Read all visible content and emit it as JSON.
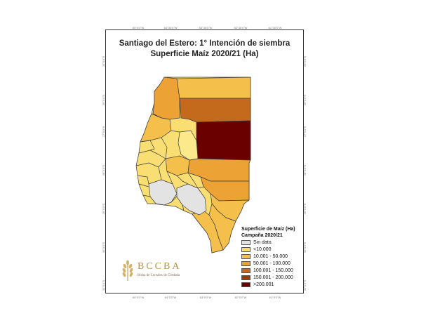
{
  "title_line1": "Santiago del Estero: 1° Intención de siembra",
  "title_line2": "Superficie Maíz 2020/21 (Ha)",
  "ticks": {
    "top": [
      "65°0'0\"W",
      "64°30'0\"W",
      "63°30'0\"W",
      "62°30'0\"W",
      "61°30'0\"W"
    ],
    "bottom": [
      "65°0'0\"W",
      "64°0'0\"W",
      "63°0'0\"W",
      "62°0'0\"W",
      "61°0'0\"W"
    ],
    "left": [
      "25°0'0\"S",
      "26°0'0\"S",
      "27°0'0\"S",
      "28°0'0\"S",
      "29°0'0\"S",
      "30°0'0\"S",
      "31°0'0\"S"
    ],
    "right": [
      "25°0'0\"S",
      "26°0'0\"S",
      "27°0'0\"S",
      "28°0'0\"S",
      "29°0'0\"S",
      "30°0'0\"S",
      "31°0'0\"S"
    ]
  },
  "legend": {
    "title1": "Superficie de Maíz (Ha)",
    "title2": "Campaña 2020/21",
    "items": [
      {
        "label": "Sin dato.",
        "color": "#e3e3e3"
      },
      {
        "label": "<10.000",
        "color": "#f9df73"
      },
      {
        "label": "10.001 - 50.000",
        "color": "#f5bf4b"
      },
      {
        "label": "50.001 - 100.000",
        "color": "#eda235"
      },
      {
        "label": "100.001 - 150.000",
        "color": "#c46a1c"
      },
      {
        "label": "150.001 - 200.000",
        "color": "#933d0d"
      },
      {
        "label": ">200.001",
        "color": "#6b0000"
      }
    ]
  },
  "logo": {
    "brand": "BCCBA",
    "subtitle": "Bolsa de Cereales de Córdoba"
  }
}
